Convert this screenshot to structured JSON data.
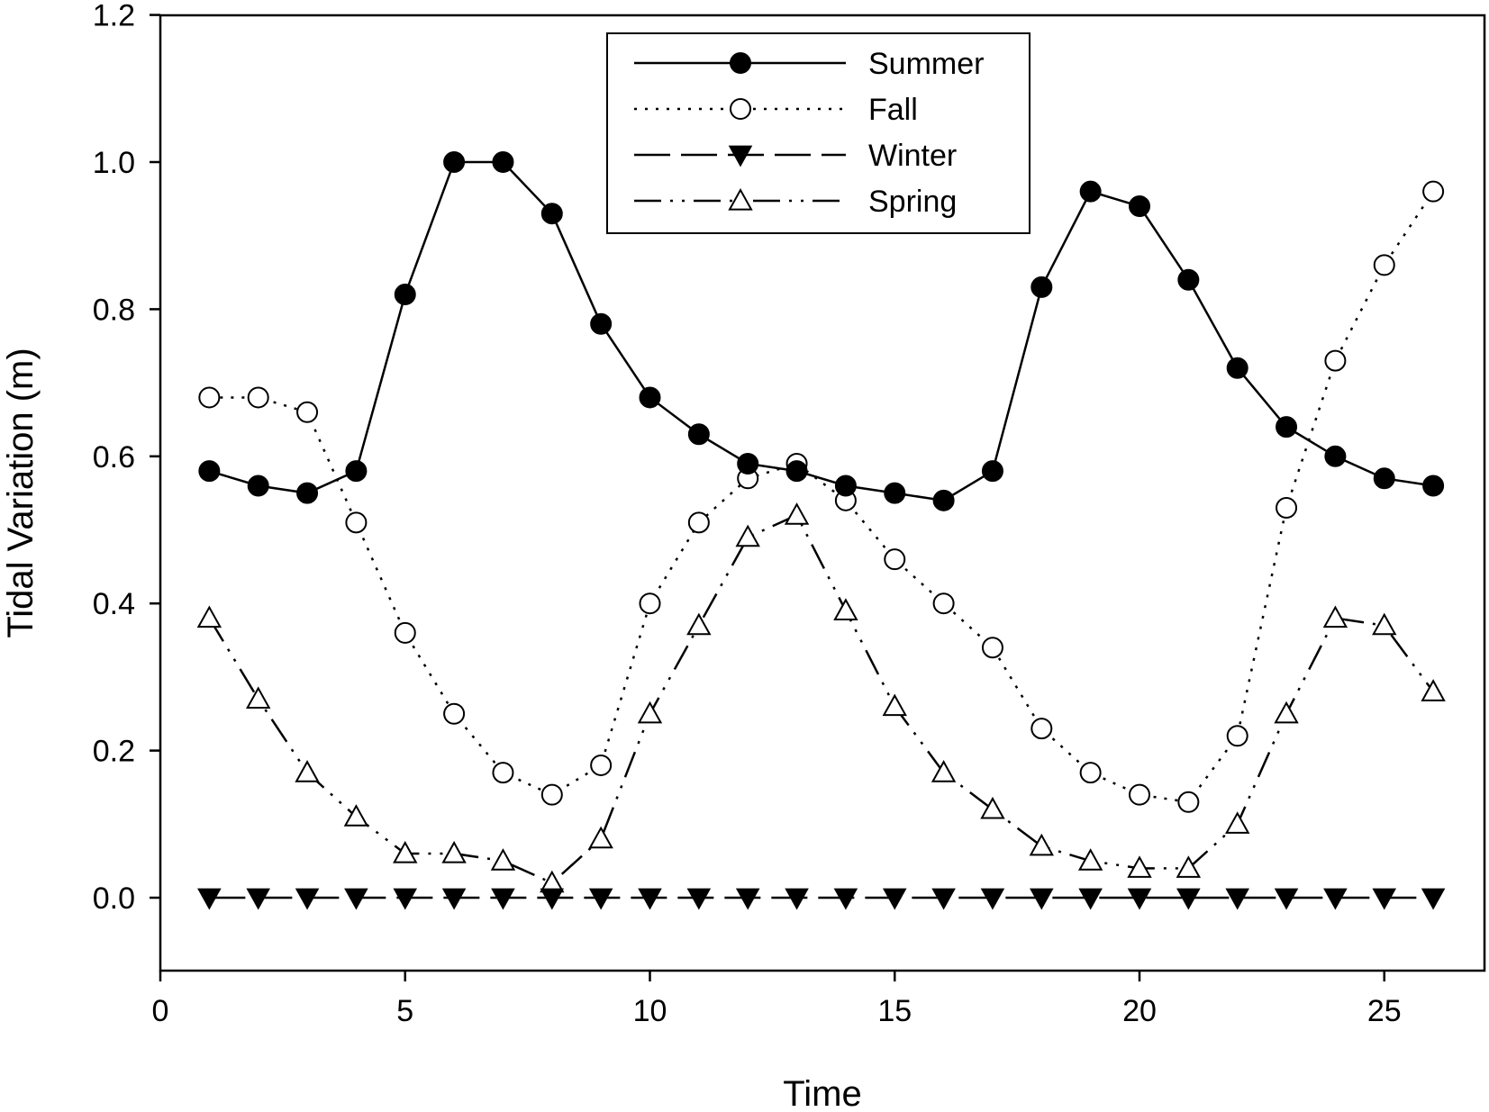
{
  "chart_data": {
    "type": "line",
    "title": "",
    "xlabel": "Time",
    "ylabel": "Tidal Variation (m)",
    "xlim": [
      0,
      27
    ],
    "ylim": [
      -0.1,
      1.2
    ],
    "x_ticks": [
      0,
      5,
      10,
      15,
      20,
      25
    ],
    "y_ticks": [
      0.0,
      0.2,
      0.4,
      0.6,
      0.8,
      1.0,
      1.2
    ],
    "x_tick_labels": [
      "0",
      "5",
      "10",
      "15",
      "20",
      "25"
    ],
    "y_tick_labels": [
      "0.0",
      "0.2",
      "0.4",
      "0.6",
      "0.8",
      "1.0",
      "1.2"
    ],
    "grid": false,
    "legend_position": "top-center",
    "x": [
      1,
      2,
      3,
      4,
      5,
      6,
      7,
      8,
      9,
      10,
      11,
      12,
      13,
      14,
      15,
      16,
      17,
      18,
      19,
      20,
      21,
      22,
      23,
      24,
      25,
      26
    ],
    "series": [
      {
        "name": "Summer",
        "marker": "filled-circle",
        "line_style": "solid",
        "values": [
          0.58,
          0.56,
          0.55,
          0.58,
          0.82,
          1.0,
          1.0,
          0.93,
          0.78,
          0.68,
          0.63,
          0.59,
          0.58,
          0.56,
          0.55,
          0.54,
          0.58,
          0.83,
          0.96,
          0.94,
          0.84,
          0.72,
          0.64,
          0.6,
          0.57,
          0.56
        ]
      },
      {
        "name": "Fall",
        "marker": "open-circle",
        "line_style": "dotted",
        "values": [
          0.68,
          0.68,
          0.66,
          0.51,
          0.36,
          0.25,
          0.17,
          0.14,
          0.18,
          0.4,
          0.51,
          0.57,
          0.59,
          0.54,
          0.46,
          0.4,
          0.34,
          0.23,
          0.17,
          0.14,
          0.13,
          0.22,
          0.53,
          0.73,
          0.86,
          0.96
        ]
      },
      {
        "name": "Winter",
        "marker": "filled-triangle-down",
        "line_style": "dashed",
        "values": [
          0,
          0,
          0,
          0,
          0,
          0,
          0,
          0,
          0,
          0,
          0,
          0,
          0,
          0,
          0,
          0,
          0,
          0,
          0,
          0,
          0,
          0,
          0,
          0,
          0,
          0
        ]
      },
      {
        "name": "Spring",
        "marker": "open-triangle-up",
        "line_style": "dash-dot-dot",
        "values": [
          0.38,
          0.27,
          0.17,
          0.11,
          0.06,
          0.06,
          0.05,
          0.02,
          0.08,
          0.25,
          0.37,
          0.49,
          0.52,
          0.39,
          0.26,
          0.17,
          0.12,
          0.07,
          0.05,
          0.04,
          0.04,
          0.1,
          0.25,
          0.38,
          0.37,
          0.28
        ]
      }
    ]
  }
}
